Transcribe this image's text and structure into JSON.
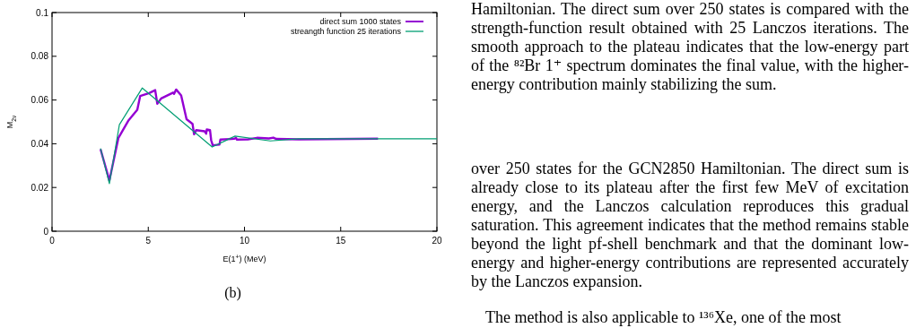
{
  "chart_data": {
    "type": "line",
    "xlabel": "E(1$^{+}$) (MeV)",
    "ylabel": "M$_{2ν}$",
    "xlim": [
      0,
      20
    ],
    "xticks": [
      0,
      5,
      10,
      15,
      20
    ],
    "ylim": [
      0,
      0.1
    ],
    "yticks": [
      0,
      0.02,
      0.04,
      0.06,
      0.08,
      0.1
    ],
    "grid": false,
    "legend": "top right",
    "marker": "none",
    "line_style": "solid",
    "series": [
      {
        "name": "direct sum 1000 states",
        "color": "#9400d3",
        "x": [
          2.52,
          2.98,
          3.45,
          3.96,
          4.43,
          4.58,
          5.05,
          5.36,
          5.47,
          5.67,
          6.29,
          6.34,
          6.45,
          6.71,
          6.99,
          7.3,
          7.38,
          7.49,
          7.93,
          8.01,
          8.04,
          8.21,
          8.27,
          8.35,
          8.7,
          8.75,
          9.48,
          9.56,
          9.6,
          10.18,
          10.65,
          11.27,
          11.5,
          11.66,
          12.82,
          16.94
        ],
        "values": [
          0.0375,
          0.0232,
          0.0427,
          0.0505,
          0.0555,
          0.0618,
          0.0632,
          0.0645,
          0.0583,
          0.0607,
          0.0634,
          0.0628,
          0.0648,
          0.0621,
          0.0512,
          0.0491,
          0.0443,
          0.0462,
          0.0457,
          0.0446,
          0.0465,
          0.0462,
          0.0416,
          0.0393,
          0.0396,
          0.0419,
          0.0423,
          0.0427,
          0.0419,
          0.042,
          0.0427,
          0.0424,
          0.0428,
          0.0422,
          0.042,
          0.0423
        ]
      },
      {
        "name": "streangth function 25 iterations",
        "color": "#009e73",
        "x": [
          2.52,
          2.98,
          3.5,
          4.69,
          8.32,
          9.51,
          11.34,
          12.82,
          20
        ],
        "values": [
          0.0379,
          0.0218,
          0.0487,
          0.0655,
          0.0385,
          0.0435,
          0.0413,
          0.0423,
          0.0423
        ]
      }
    ],
    "annotations": [
      "(b)",
      "Hamiltonian. The direct sum over 250 states is compared with the strength-function result obtained with 25 Lanczos iterations. The smooth approach to the plateau indicates that the low-energy part of the ⁸²Br 1⁺ spectrum dominates the final value, with the higher-energy contribution mainly stabilizing the sum.",
      "over 250 states for the GCN2850 Hamiltonian. The direct sum is already close to its plateau after the first few MeV of excitation energy, and the Lanczos calculation reproduces this gradual saturation. This agreement indicates that the method remains stable beyond the light pf-shell benchmark and that the dominant low-energy and higher-energy contributions are represented accurately by the Lanczos expansion.",
      "The method is also applicable to ¹³⁶Xe, one of the most"
    ]
  }
}
